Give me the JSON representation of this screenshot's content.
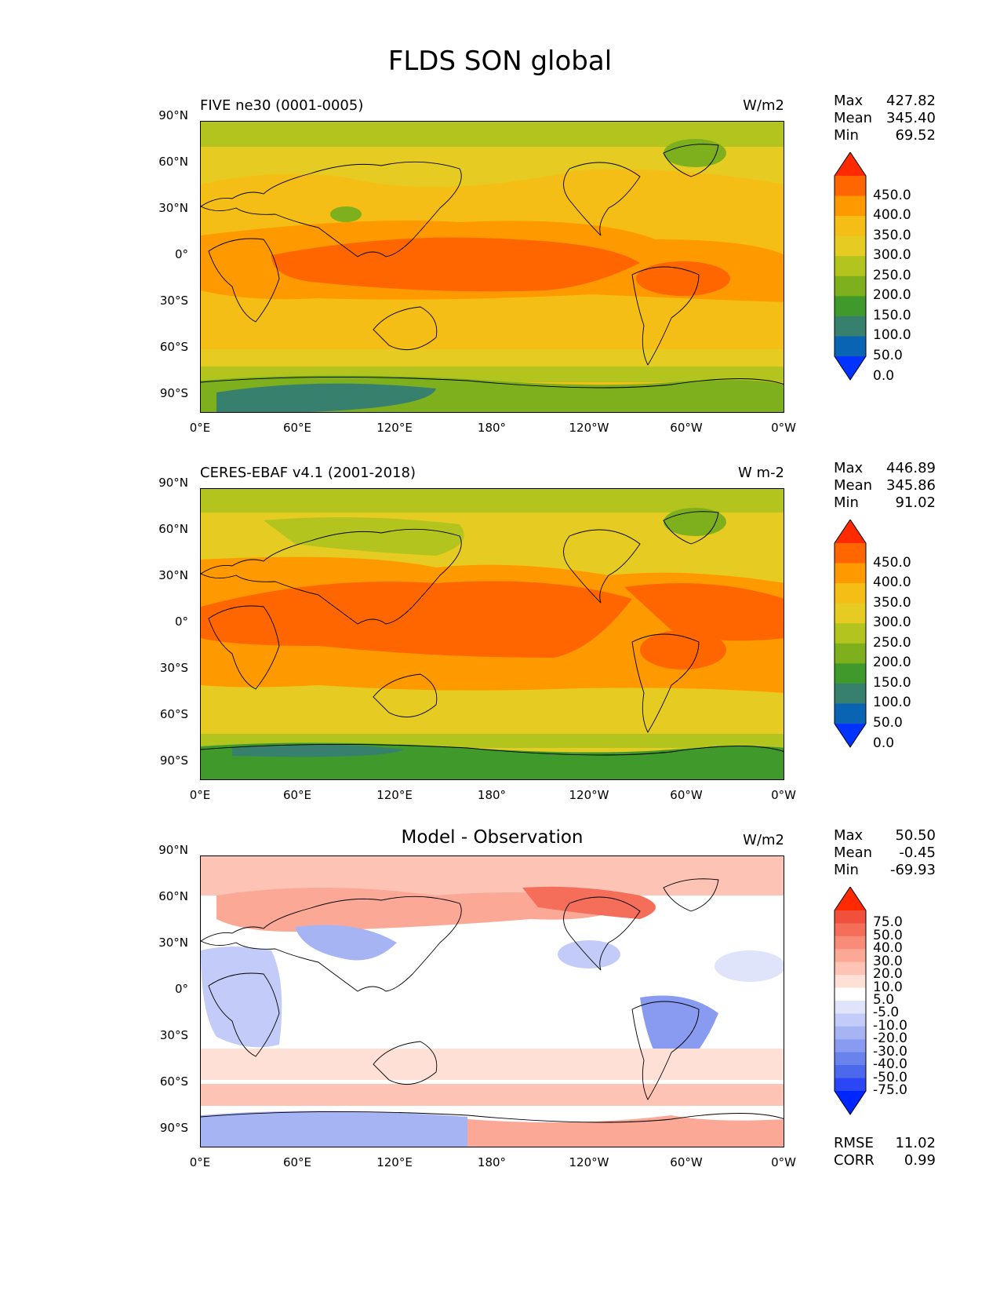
{
  "suptitle": "FLDS SON global",
  "axes": {
    "lat_labels": [
      "90°N",
      "60°N",
      "30°N",
      "0°",
      "30°S",
      "60°S",
      "90°S"
    ],
    "lon_labels": [
      "0°E",
      "60°E",
      "120°E",
      "180°",
      "120°W",
      "60°W",
      "0°W"
    ]
  },
  "panels": [
    {
      "title": "FIVE ne30 (0001-0005)",
      "units": "W/m2",
      "stats": {
        "max_label": "Max",
        "max": "427.82",
        "mean_label": "Mean",
        "mean": "345.40",
        "min_label": "Min",
        "min": "69.52"
      },
      "colorbar": {
        "labels": [
          "450.0",
          "400.0",
          "350.0",
          "300.0",
          "250.0",
          "200.0",
          "150.0",
          "100.0",
          "50.0",
          "0.0"
        ],
        "colors": [
          "#ff2a00",
          "#ff6600",
          "#ff9900",
          "#f5be17",
          "#e6cc22",
          "#b4c41e",
          "#7db01c",
          "#3f9a2b",
          "#37806e",
          "#0a64b4",
          "#0033ff"
        ]
      }
    },
    {
      "title": "CERES-EBAF v4.1 (2001-2018)",
      "units": "W m-2",
      "stats": {
        "max_label": "Max",
        "max": "446.89",
        "mean_label": "Mean",
        "mean": "345.86",
        "min_label": "Min",
        "min": "91.02"
      },
      "colorbar": {
        "labels": [
          "450.0",
          "400.0",
          "350.0",
          "300.0",
          "250.0",
          "200.0",
          "150.0",
          "100.0",
          "50.0",
          "0.0"
        ],
        "colors": [
          "#ff2a00",
          "#ff6600",
          "#ff9900",
          "#f5be17",
          "#e6cc22",
          "#b4c41e",
          "#7db01c",
          "#3f9a2b",
          "#37806e",
          "#0a64b4",
          "#0033ff"
        ]
      }
    },
    {
      "title": "Model - Observation",
      "units": "W/m2",
      "stats": {
        "max_label": "Max",
        "max": "50.50",
        "mean_label": "Mean",
        "mean": "-0.45",
        "min_label": "Min",
        "min": "-69.93"
      },
      "colorbar": {
        "labels": [
          "75.0",
          "50.0",
          "40.0",
          "30.0",
          "20.0",
          "10.0",
          "5.0",
          "-5.0",
          "-10.0",
          "-20.0",
          "-30.0",
          "-40.0",
          "-50.0",
          "-75.0"
        ],
        "colors": [
          "#ff2a00",
          "#f0503c",
          "#f46e5a",
          "#f88c78",
          "#fba896",
          "#fdc4b6",
          "#fee0d6",
          "#ffffff",
          "#dfe4fb",
          "#c3ccf8",
          "#a6b4f4",
          "#889bf0",
          "#6a82ec",
          "#4c68ec",
          "#2a46f6",
          "#0026ff"
        ]
      },
      "metrics": {
        "rmse_label": "RMSE",
        "rmse": "11.02",
        "corr_label": "CORR",
        "corr": "0.99"
      }
    }
  ]
}
